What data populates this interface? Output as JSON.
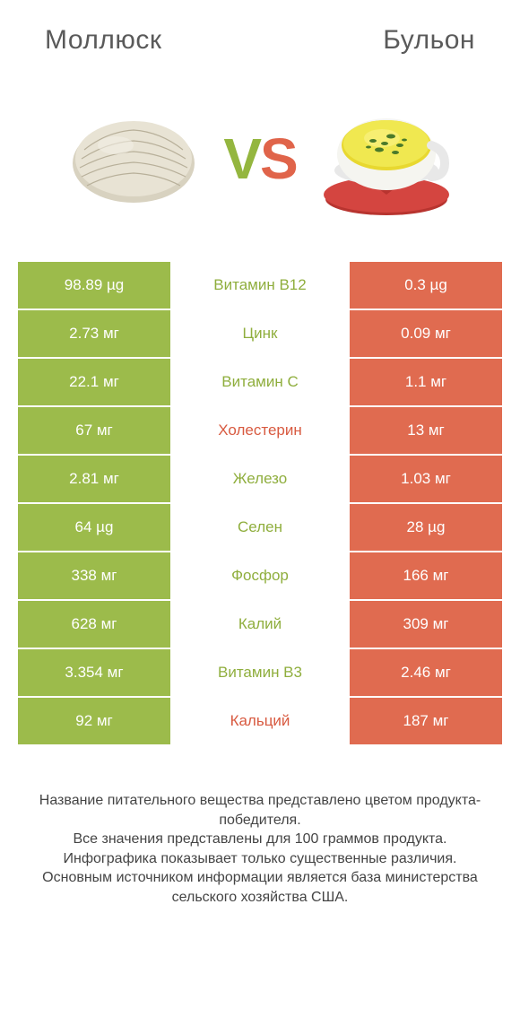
{
  "colors": {
    "left": "#9CBB4B",
    "right": "#E06B50",
    "left_label": "#8FAE3D",
    "right_label": "#D85A40",
    "header_text": "#5a5a5a"
  },
  "header": {
    "left_title": "Моллюск",
    "right_title": "Бульон"
  },
  "vs": {
    "v": "V",
    "s": "S"
  },
  "rows": [
    {
      "left": "98.89 µg",
      "label": "Витамин B12",
      "right": "0.3 µg",
      "winner": "left"
    },
    {
      "left": "2.73 мг",
      "label": "Цинк",
      "right": "0.09 мг",
      "winner": "left"
    },
    {
      "left": "22.1 мг",
      "label": "Витамин C",
      "right": "1.1 мг",
      "winner": "left"
    },
    {
      "left": "67 мг",
      "label": "Холестерин",
      "right": "13 мг",
      "winner": "right"
    },
    {
      "left": "2.81 мг",
      "label": "Железо",
      "right": "1.03 мг",
      "winner": "left"
    },
    {
      "left": "64 µg",
      "label": "Селен",
      "right": "28 µg",
      "winner": "left"
    },
    {
      "left": "338 мг",
      "label": "Фосфор",
      "right": "166 мг",
      "winner": "left"
    },
    {
      "left": "628 мг",
      "label": "Калий",
      "right": "309 мг",
      "winner": "left"
    },
    {
      "left": "3.354 мг",
      "label": "Витамин B3",
      "right": "2.46 мг",
      "winner": "left"
    },
    {
      "left": "92 мг",
      "label": "Кальций",
      "right": "187 мг",
      "winner": "right"
    }
  ],
  "footer": {
    "line1": "Название питательного вещества представлено цветом продукта-победителя.",
    "line2": "Все значения представлены для 100 граммов продукта.",
    "line3": "Инфографика показывает только существенные различия.",
    "line4": "Основным источником информации является база министерства сельского хозяйства США."
  }
}
